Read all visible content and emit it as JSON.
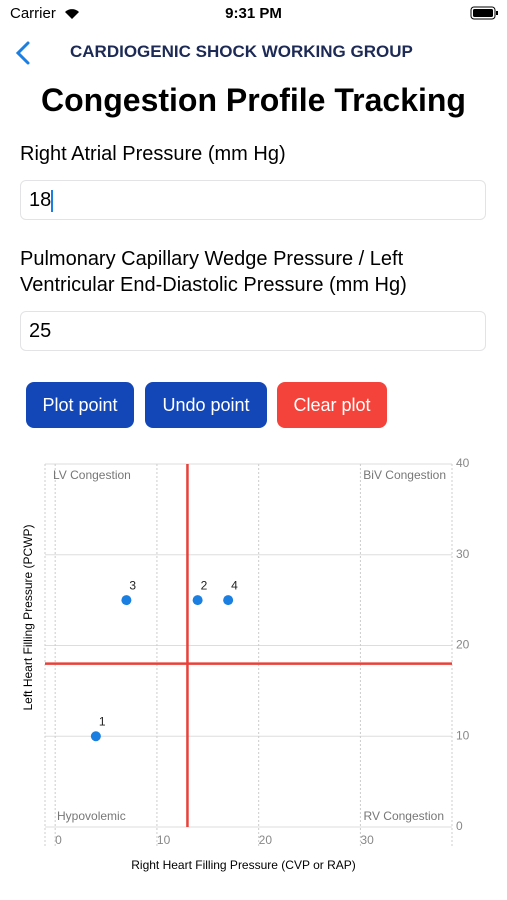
{
  "status_bar": {
    "carrier": "Carrier",
    "time": "9:31 PM"
  },
  "nav": {
    "title": "CARDIOGENIC SHOCK WORKING GROUP"
  },
  "header": {
    "title": "Congestion Profile Tracking"
  },
  "form": {
    "fields": [
      {
        "label": "Right Atrial Pressure (mm Hg)",
        "value": "18"
      },
      {
        "label": "Pulmonary Capillary Wedge Pressure / Left Ventricular End-Diastolic Pressure (mm Hg)",
        "value": "25"
      }
    ],
    "buttons": [
      "Plot point",
      "Undo point",
      "Clear plot"
    ]
  },
  "chart_data": {
    "type": "scatter",
    "x_label": "Right Heart Filling Pressure (CVP or RAP)",
    "y_label": "Left Heart Filling Pressure (PCWP)",
    "x": [
      4,
      14,
      7,
      17
    ],
    "values": [
      10,
      25,
      25,
      25
    ],
    "point_labels": [
      "1",
      "2",
      "3",
      "4"
    ],
    "color": "#1a7fe0",
    "xlim": [
      -1,
      39
    ],
    "ylim": [
      0,
      40
    ],
    "xticks": [
      0,
      10,
      20,
      30
    ],
    "yticks": [
      0,
      10,
      20,
      30,
      40
    ],
    "grid": true,
    "reference_lines": {
      "x": 13,
      "y": 18,
      "color": "#e8403a"
    },
    "quadrants": {
      "top_left": "LV Congestion",
      "top_right": "BiV Congestion",
      "bottom_left": "Hypovolemic",
      "bottom_right": "RV Congestion"
    }
  }
}
